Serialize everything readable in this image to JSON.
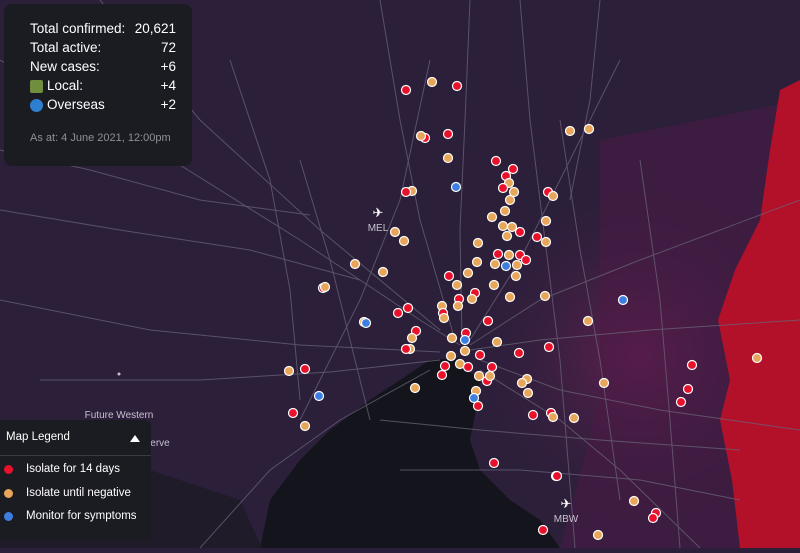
{
  "stats": {
    "total_confirmed_label": "Total confirmed:",
    "total_confirmed_value": "20,621",
    "total_active_label": "Total active:",
    "total_active_value": "72",
    "new_cases_label": "New cases:",
    "new_cases_value": "+6",
    "local_label": "Local:",
    "local_value": "+4",
    "local_icon": "house-icon",
    "overseas_label": "Overseas",
    "overseas_value": "+2",
    "overseas_icon": "globe-icon",
    "as_at": "As at: 4 June 2021, 12:00pm"
  },
  "legend": {
    "title": "Map Legend",
    "toggle_icon": "triangle-up-icon",
    "items": [
      {
        "label": "Isolate for 14 days",
        "color": "#e8102a"
      },
      {
        "label": "Isolate until negative",
        "color": "#e8a65a"
      },
      {
        "label": "Monitor for symptoms",
        "color": "#3d7fe0"
      }
    ]
  },
  "map": {
    "labels": {
      "mel": "MEL",
      "mbw": "MBW",
      "future_western": "Future Western",
      "erve": "erve"
    },
    "colors": {
      "land": "#2b1f3a",
      "water": "#14151c",
      "risk_zone": "#b3102a",
      "road": "#6a6478"
    }
  }
}
